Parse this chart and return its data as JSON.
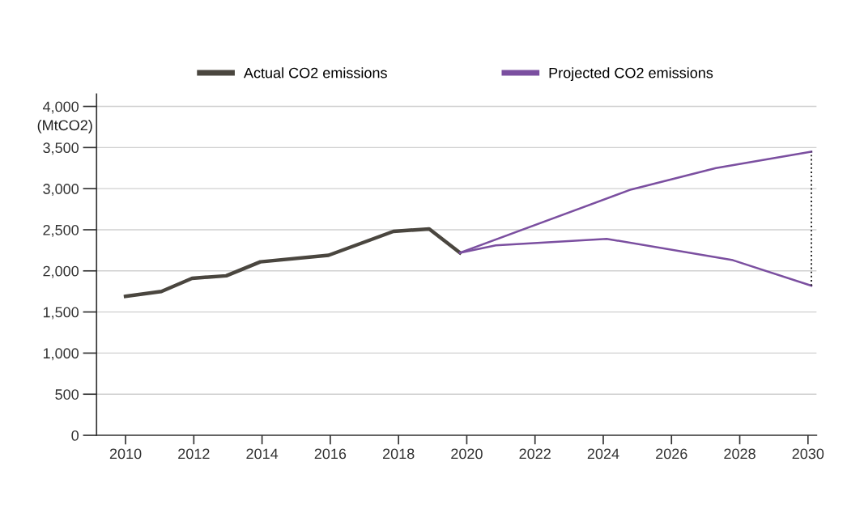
{
  "chart_data": {
    "type": "line",
    "ylabel": "(MtCO2)",
    "xlim": [
      2009.15,
      2030.25
    ],
    "xticks": [
      2010,
      2012,
      2014,
      2016,
      2018,
      2020,
      2022,
      2024,
      2026,
      2028,
      2030
    ],
    "ylim": [
      0,
      4150
    ],
    "yticks": [
      {
        "value": 0,
        "label": "0"
      },
      {
        "value": 500,
        "label": "500"
      },
      {
        "value": 1000,
        "label": "1,000"
      },
      {
        "value": 1500,
        "label": "1,500"
      },
      {
        "value": 2000,
        "label": "2,000"
      },
      {
        "value": 2500,
        "label": "2,500"
      },
      {
        "value": 3000,
        "label": "3,000"
      },
      {
        "value": 3500,
        "label": "3,500"
      },
      {
        "value": 4000,
        "label": "4,000"
      }
    ],
    "grid": "y",
    "legend": "top",
    "marker": "none",
    "series": [
      {
        "name": "Actual CO2 emissions",
        "color": "#4a463f",
        "x": [
          2010,
          2011.05,
          2011.95,
          2012.95,
          2013.95,
          2015.95,
          2017.85,
          2018.9,
          2019.8
        ],
        "values": [
          1690,
          1750,
          1910,
          1940,
          2110,
          2190,
          2480,
          2510,
          2220
        ]
      },
      {
        "name": "Projected CO2 emissions",
        "color": "#7b4fa0",
        "x": [
          2019.8,
          2024.82,
          2027.3,
          2030.1
        ],
        "values": [
          2220,
          2990,
          3250,
          3450
        ]
      },
      {
        "color": "#7b4fa0",
        "x": [
          2019.8,
          2020.85,
          2024.1,
          2027.8,
          2030.1
        ],
        "values": [
          2220,
          2310,
          2390,
          2130,
          1820
        ]
      },
      {
        "color": "#222222",
        "line_style": "dotted",
        "x": [
          2030.1,
          2030.1
        ],
        "values": [
          1820,
          3450
        ]
      }
    ]
  }
}
